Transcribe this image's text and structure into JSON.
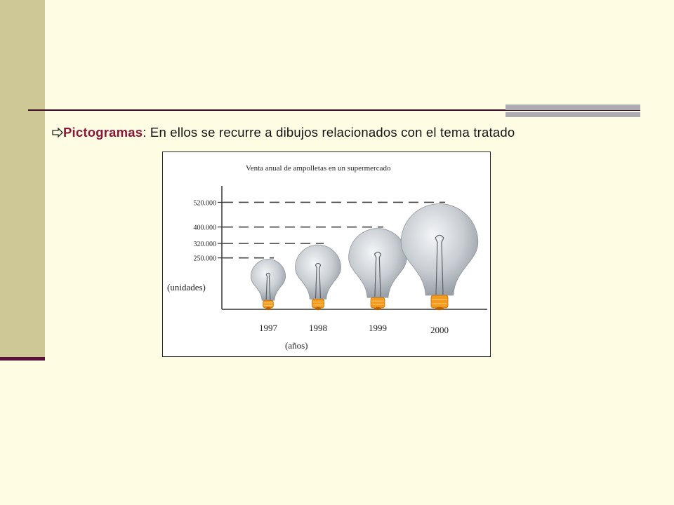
{
  "slide": {
    "bullet_term": "Pictogramas",
    "bullet_text": ": En ellos se recurre a dibujos relacionados con el tema tratado"
  },
  "chart_data": {
    "type": "bar",
    "title": "Venta anual de ampolletas en un supermercado",
    "categories": [
      "1997",
      "1998",
      "1999",
      "2000"
    ],
    "values": [
      250000,
      320000,
      400000,
      520000
    ],
    "value_labels": [
      "250.000",
      "320.000",
      "400.000",
      "520.000"
    ],
    "xlabel": "(años)",
    "ylabel": "(unidades)",
    "ylim": [
      0,
      600000
    ],
    "mark": "lightbulb-pictogram",
    "grid": false,
    "colors": {
      "bulb_glass": "#c8cdd2",
      "bulb_base": "#f39a1c",
      "dashes": "#444444"
    }
  }
}
